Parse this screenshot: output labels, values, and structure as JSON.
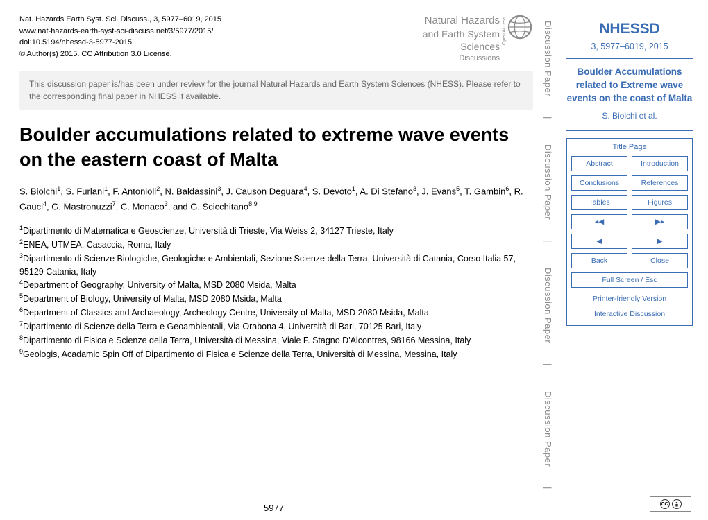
{
  "header": {
    "citation": "Nat. Hazards Earth Syst. Sci. Discuss., 3, 5977–6019, 2015",
    "url": "www.nat-hazards-earth-syst-sci-discuss.net/3/5977/2015/",
    "doi": "doi:10.5194/nhessd-3-5977-2015",
    "copyright": "© Author(s) 2015. CC Attribution 3.0 License.",
    "journal_line1": "Natural Hazards",
    "journal_line2": "and Earth System",
    "journal_line3": "Sciences",
    "open_access": "Open Access",
    "discussions": "Discussions"
  },
  "review_notice": "This discussion paper is/has been under review for the journal Natural Hazards and Earth System Sciences (NHESS). Please refer to the corresponding final paper in NHESS if available.",
  "title": "Boulder accumulations related to extreme wave events on the eastern coast of Malta",
  "authors_html": "S. Biolchi<sup>1</sup>, S. Furlani<sup>1</sup>, F. Antonioli<sup>2</sup>, N. Baldassini<sup>3</sup>, J. Causon Deguara<sup>4</sup>, S. Devoto<sup>1</sup>, A. Di Stefano<sup>3</sup>, J. Evans<sup>5</sup>, T. Gambin<sup>6</sup>, R. Gauci<sup>4</sup>, G. Mastronuzzi<sup>7</sup>, C. Monaco<sup>3</sup>, and G. Scicchitano<sup>8,9</sup>",
  "affiliations": [
    "<sup>1</sup>Dipartimento di Matematica e Geoscienze, Università di Trieste, Via Weiss 2, 34127 Trieste, Italy",
    "<sup>2</sup>ENEA, UTMEA, Casaccia, Roma, Italy",
    "<sup>3</sup>Dipartimento di Scienze Biologiche, Geologiche e Ambientali, Sezione Scienze della Terra, Università di Catania, Corso Italia 57, 95129 Catania, Italy",
    "<sup>4</sup>Department of Geography, University of Malta, MSD 2080 Msida, Malta",
    "<sup>5</sup>Department of Biology, University of Malta, MSD 2080 Msida, Malta",
    "<sup>6</sup>Department of Classics and Archaeology, Archeology Centre, University of Malta, MSD 2080 Msida, Malta",
    "<sup>7</sup>Dipartimento di Scienze della Terra e Geoambientali, Via Orabona 4, Università di Bari, 70125 Bari, Italy",
    "<sup>8</sup>Dipartimento di Fisica e Scienze della Terra, Università di Messina, Viale F. Stagno D'Alcontres, 98166 Messina, Italy",
    "<sup>9</sup>Geologis, Acadamic Spin Off of Dipartimento di Fisica e Scienze della Terra, Università di Messina, Messina, Italy"
  ],
  "page_number": "5977",
  "vert_label": "Discussion Paper",
  "sidebar": {
    "journal": "NHESSD",
    "volume": "3, 5977–6019, 2015",
    "paper_title": "Boulder Accumulations related to Extreme wave events on the coast of Malta",
    "authors": "S. Biolchi et al.",
    "nav": {
      "title_page": "Title Page",
      "abstract": "Abstract",
      "introduction": "Introduction",
      "conclusions": "Conclusions",
      "references": "References",
      "tables": "Tables",
      "figures": "Figures",
      "first": "◂◀",
      "last": "▶▸",
      "prev": "◀",
      "next": "▶",
      "back": "Back",
      "close": "Close",
      "fullscreen": "Full Screen / Esc",
      "printer": "Printer-friendly Version",
      "discussion": "Interactive Discussion"
    }
  },
  "colors": {
    "link_blue": "#3b6db5",
    "gray_text": "#8a8a8a",
    "notice_bg": "#f2f2f2"
  }
}
